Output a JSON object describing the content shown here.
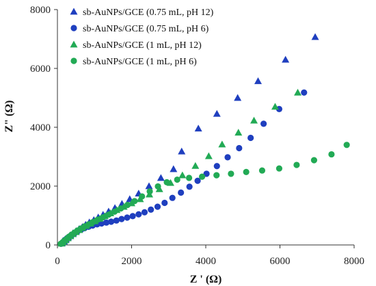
{
  "chart_data": {
    "type": "scatter",
    "xlabel": "Z ' (Ω)",
    "ylabel": "Z\" (Ω)",
    "xlim": [
      0,
      8000
    ],
    "ylim": [
      0,
      8000
    ],
    "xticks": [
      "0",
      "2000",
      "4000",
      "6000",
      "8000"
    ],
    "yticks": [
      "0",
      "2000",
      "4000",
      "6000",
      "8000"
    ],
    "grid": false,
    "legend_position": "top-left",
    "series": [
      {
        "name": "sb-AuNPs/GCE (0.75 mL, pH 12)",
        "marker": "triangle",
        "color": "#1f3fbf",
        "points": [
          [
            120,
            60
          ],
          [
            180,
            120
          ],
          [
            230,
            190
          ],
          [
            290,
            260
          ],
          [
            350,
            330
          ],
          [
            420,
            400
          ],
          [
            500,
            470
          ],
          [
            580,
            540
          ],
          [
            670,
            610
          ],
          [
            760,
            690
          ],
          [
            860,
            770
          ],
          [
            980,
            850
          ],
          [
            1100,
            940
          ],
          [
            1230,
            1030
          ],
          [
            1380,
            1140
          ],
          [
            1550,
            1260
          ],
          [
            1740,
            1400
          ],
          [
            1950,
            1560
          ],
          [
            2190,
            1750
          ],
          [
            2470,
            2000
          ],
          [
            2790,
            2280
          ],
          [
            3130,
            2580
          ],
          [
            3350,
            3180
          ],
          [
            3800,
            3960
          ],
          [
            4300,
            4460
          ],
          [
            4860,
            5000
          ],
          [
            5410,
            5570
          ],
          [
            6150,
            6300
          ],
          [
            6950,
            7070
          ]
        ]
      },
      {
        "name": "sb-AuNPs/GCE (0.75 mL, pH 6)",
        "marker": "circle",
        "color": "#1f3fbf",
        "points": [
          [
            100,
            40
          ],
          [
            150,
            100
          ],
          [
            200,
            170
          ],
          [
            260,
            230
          ],
          [
            330,
            290
          ],
          [
            400,
            350
          ],
          [
            470,
            410
          ],
          [
            550,
            470
          ],
          [
            640,
            520
          ],
          [
            730,
            570
          ],
          [
            840,
            620
          ],
          [
            950,
            660
          ],
          [
            1070,
            700
          ],
          [
            1190,
            730
          ],
          [
            1320,
            760
          ],
          [
            1450,
            790
          ],
          [
            1590,
            830
          ],
          [
            1730,
            880
          ],
          [
            1880,
            930
          ],
          [
            2030,
            980
          ],
          [
            2190,
            1040
          ],
          [
            2350,
            1110
          ],
          [
            2520,
            1200
          ],
          [
            2700,
            1300
          ],
          [
            2890,
            1430
          ],
          [
            3100,
            1600
          ],
          [
            3330,
            1780
          ],
          [
            3560,
            1980
          ],
          [
            3780,
            2180
          ],
          [
            4020,
            2420
          ],
          [
            4300,
            2680
          ],
          [
            4590,
            2980
          ],
          [
            4900,
            3290
          ],
          [
            5210,
            3640
          ],
          [
            5560,
            4120
          ],
          [
            5980,
            4620
          ],
          [
            6650,
            5180
          ]
        ]
      },
      {
        "name": "sb-AuNPs/GCE (1 mL, pH 12)",
        "marker": "triangle",
        "color": "#22aa55",
        "points": [
          [
            110,
            50
          ],
          [
            160,
            100
          ],
          [
            220,
            160
          ],
          [
            280,
            230
          ],
          [
            350,
            300
          ],
          [
            420,
            370
          ],
          [
            500,
            440
          ],
          [
            590,
            510
          ],
          [
            680,
            580
          ],
          [
            780,
            650
          ],
          [
            890,
            730
          ],
          [
            1010,
            810
          ],
          [
            1140,
            890
          ],
          [
            1280,
            980
          ],
          [
            1430,
            1080
          ],
          [
            1600,
            1190
          ],
          [
            1790,
            1300
          ],
          [
            2000,
            1420
          ],
          [
            2230,
            1560
          ],
          [
            2480,
            1720
          ],
          [
            2750,
            1900
          ],
          [
            3050,
            2110
          ],
          [
            3370,
            2370
          ],
          [
            3720,
            2690
          ],
          [
            4080,
            3020
          ],
          [
            4440,
            3420
          ],
          [
            4880,
            3820
          ],
          [
            5300,
            4230
          ],
          [
            5870,
            4700
          ],
          [
            6480,
            5180
          ]
        ]
      },
      {
        "name": "sb-AuNPs/GCE (1 mL, pH 6)",
        "marker": "circle",
        "color": "#22aa55",
        "points": [
          [
            90,
            40
          ],
          [
            140,
            90
          ],
          [
            190,
            150
          ],
          [
            250,
            210
          ],
          [
            310,
            280
          ],
          [
            380,
            350
          ],
          [
            460,
            420
          ],
          [
            540,
            490
          ],
          [
            630,
            560
          ],
          [
            730,
            630
          ],
          [
            840,
            700
          ],
          [
            960,
            780
          ],
          [
            1090,
            860
          ],
          [
            1230,
            940
          ],
          [
            1380,
            1030
          ],
          [
            1540,
            1130
          ],
          [
            1710,
            1240
          ],
          [
            1890,
            1360
          ],
          [
            2080,
            1490
          ],
          [
            2280,
            1650
          ],
          [
            2490,
            1820
          ],
          [
            2710,
            1990
          ],
          [
            2950,
            2130
          ],
          [
            3230,
            2220
          ],
          [
            3550,
            2280
          ],
          [
            3900,
            2320
          ],
          [
            4290,
            2370
          ],
          [
            4680,
            2420
          ],
          [
            5090,
            2480
          ],
          [
            5520,
            2530
          ],
          [
            5980,
            2600
          ],
          [
            6450,
            2720
          ],
          [
            6920,
            2880
          ],
          [
            7390,
            3080
          ],
          [
            7800,
            3400
          ]
        ]
      }
    ]
  }
}
